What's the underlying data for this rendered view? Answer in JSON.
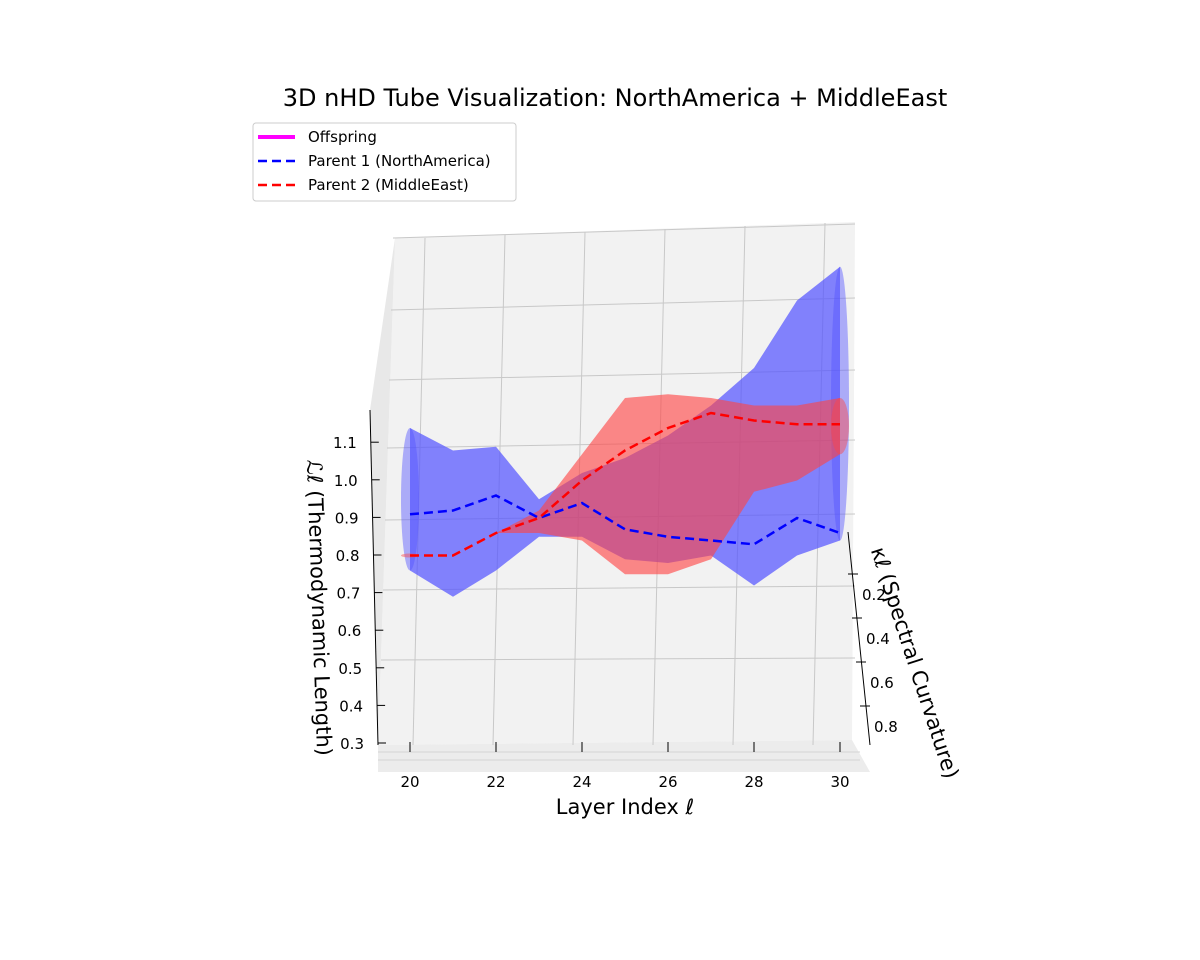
{
  "chart_data": {
    "type": "3d-tube",
    "title": "3D nHD Tube Visualization: NorthAmerica + MiddleEast",
    "xlabel": "Layer Index ℓ",
    "ylabel": "κℓ (Spectral Curvature)",
    "zlabel": "ℒℓ (Thermodynamic Length)",
    "x_ticks": [
      20,
      22,
      24,
      26,
      28,
      30
    ],
    "y_ticks": [
      "0.2",
      "0.4",
      "0.6",
      "0.8"
    ],
    "z_ticks": [
      "0.3",
      "0.4",
      "0.5",
      "0.6",
      "0.7",
      "0.8",
      "0.9",
      "1.0",
      "1.1"
    ],
    "xlim": [
      19.3,
      30.7
    ],
    "ylim": [
      0.0,
      0.9
    ],
    "zlim": [
      0.3,
      1.2
    ],
    "grid": true,
    "legend": {
      "position": "top-left",
      "entries": [
        {
          "label": "Offspring",
          "color": "#ff00ff",
          "style": "solid"
        },
        {
          "label": "Parent 1 (NorthAmerica)",
          "color": "#0000ff",
          "style": "dashed"
        },
        {
          "label": "Parent 2 (MiddleEast)",
          "color": "#ff0000",
          "style": "dashed"
        }
      ]
    },
    "series": [
      {
        "name": "Parent 1 (NorthAmerica)",
        "color": "#0000ff",
        "fill": "#5555ff",
        "x": [
          20,
          21,
          22,
          23,
          24,
          25,
          26,
          27,
          28,
          29,
          30
        ],
        "z": [
          0.91,
          0.92,
          0.96,
          0.9,
          0.94,
          0.87,
          0.85,
          0.84,
          0.83,
          0.9,
          0.86
        ],
        "upper": [
          1.14,
          1.08,
          1.09,
          0.95,
          1.02,
          1.06,
          1.12,
          1.2,
          1.3,
          1.48,
          1.57
        ],
        "lower": [
          0.76,
          0.69,
          0.76,
          0.85,
          0.85,
          0.79,
          0.78,
          0.8,
          0.72,
          0.8,
          0.84
        ]
      },
      {
        "name": "Parent 2 (MiddleEast)",
        "color": "#ff0000",
        "fill": "#ff4444",
        "x": [
          20,
          21,
          22,
          23,
          24,
          25,
          26,
          27,
          28,
          29,
          30
        ],
        "z": [
          0.8,
          0.8,
          0.86,
          0.9,
          1.0,
          1.08,
          1.14,
          1.18,
          1.16,
          1.15,
          1.15
        ],
        "upper": [
          0.8,
          0.8,
          0.86,
          0.92,
          1.07,
          1.22,
          1.23,
          1.22,
          1.2,
          1.2,
          1.22
        ],
        "lower": [
          0.8,
          0.8,
          0.86,
          0.86,
          0.84,
          0.75,
          0.75,
          0.79,
          0.97,
          1.0,
          1.07
        ]
      }
    ]
  }
}
